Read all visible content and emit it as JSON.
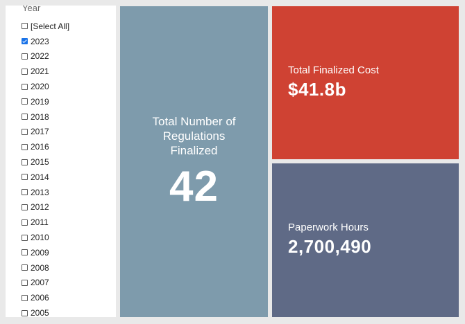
{
  "filter": {
    "title": "Year",
    "options": [
      {
        "label": "[Select All]",
        "checked": false
      },
      {
        "label": "2023",
        "checked": true
      },
      {
        "label": "2022",
        "checked": false
      },
      {
        "label": "2021",
        "checked": false
      },
      {
        "label": "2020",
        "checked": false
      },
      {
        "label": "2019",
        "checked": false
      },
      {
        "label": "2018",
        "checked": false
      },
      {
        "label": "2017",
        "checked": false
      },
      {
        "label": "2016",
        "checked": false
      },
      {
        "label": "2015",
        "checked": false
      },
      {
        "label": "2014",
        "checked": false
      },
      {
        "label": "2013",
        "checked": false
      },
      {
        "label": "2012",
        "checked": false
      },
      {
        "label": "2011",
        "checked": false
      },
      {
        "label": "2010",
        "checked": false
      },
      {
        "label": "2009",
        "checked": false
      },
      {
        "label": "2008",
        "checked": false
      },
      {
        "label": "2007",
        "checked": false
      },
      {
        "label": "2006",
        "checked": false
      },
      {
        "label": "2005",
        "checked": false
      }
    ]
  },
  "tiles": {
    "regulations": {
      "label": "Total Number of Regulations Finalized",
      "value": "42",
      "color": "#7e9bac"
    },
    "cost": {
      "label": "Total Finalized Cost",
      "value": "$41.8b",
      "color": "#cf4233"
    },
    "hours": {
      "label": "Paperwork Hours",
      "value": "2,700,490",
      "color": "#5f6a86"
    }
  },
  "colors": {
    "background": "#e9e9e9",
    "checkbox_checked": "#1a73e8"
  }
}
